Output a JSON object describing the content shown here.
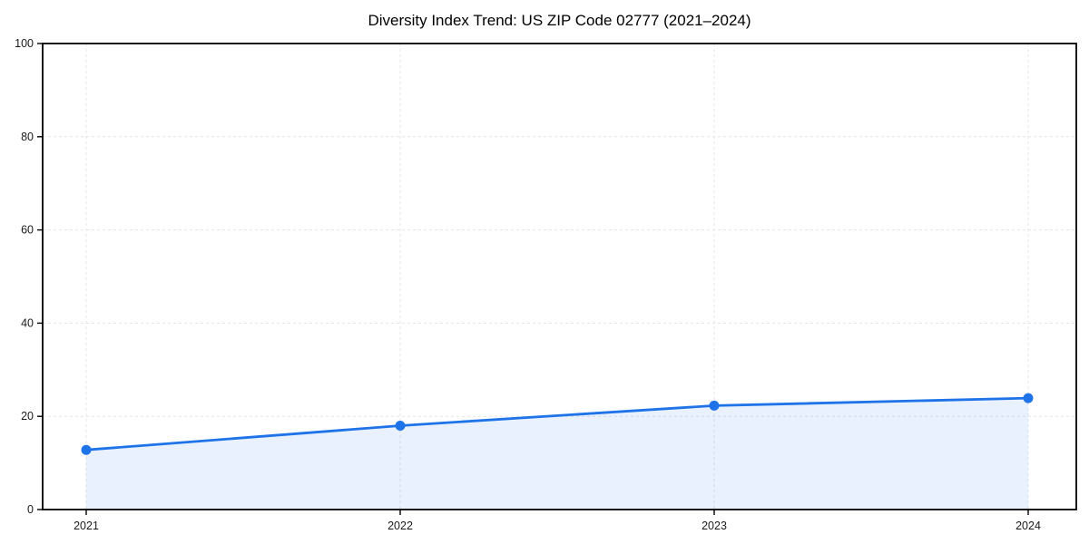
{
  "chart_data": {
    "type": "line",
    "title": "Diversity Index Trend: US ZIP Code 02777 (2021–2024)",
    "x": [
      2021,
      2022,
      2023,
      2024
    ],
    "xticks": [
      "2021",
      "2022",
      "2023",
      "2024"
    ],
    "series": [
      {
        "name": "Diversity Index",
        "values": [
          12.8,
          18.0,
          22.3,
          23.9
        ]
      }
    ],
    "xlabel": "",
    "ylabel": "",
    "ylim": [
      0,
      100
    ],
    "yticks": [
      0,
      20,
      40,
      60,
      80,
      100
    ],
    "grid": true,
    "grid_style": "dashed",
    "legend": "none",
    "area_fill": true,
    "marker": "circle",
    "style": {
      "line_color": "#1f73e8",
      "marker_color": "#1f73e8",
      "fill_color": "#1f73e8",
      "fill_opacity": 0.1,
      "grid_color": "#e4e4e4",
      "spine_color": "#000000",
      "tick_label_color": "#1a1a1a",
      "title_color": "#000000",
      "background": "#ffffff"
    }
  }
}
